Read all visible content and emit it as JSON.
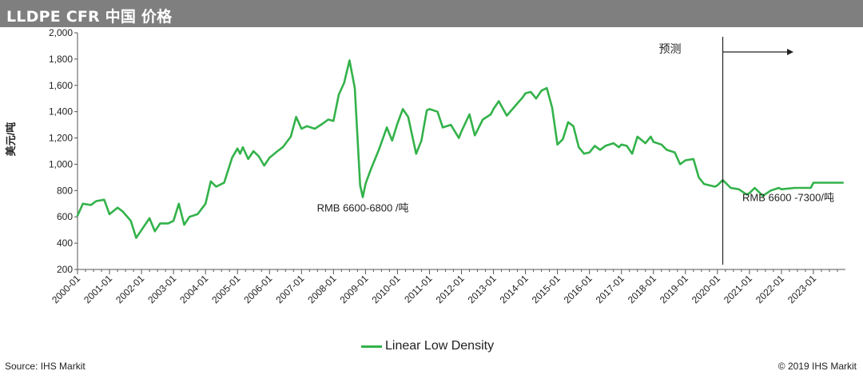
{
  "header": {
    "title": "LLDPE CFR 中国 价格"
  },
  "footer": {
    "source": "Source: IHS Markit",
    "copyright": "© 2019 IHS Markit"
  },
  "chart_data": {
    "type": "line",
    "title": "LLDPE CFR 中国 价格",
    "ylabel": "美元/吨",
    "xlabel": "",
    "ylim": [
      200,
      2000
    ],
    "yticks": [
      "200",
      "400",
      "600",
      "800",
      "1,000",
      "1,200",
      "1,400",
      "1,600",
      "1,800",
      "2,000"
    ],
    "ytick_values": [
      200,
      400,
      600,
      800,
      1000,
      1200,
      1400,
      1600,
      1800,
      2000
    ],
    "xticks": [
      "2000-01",
      "2001-01",
      "2002-01",
      "2003-01",
      "2004-01",
      "2005-01",
      "2006-01",
      "2007-01",
      "2008-01",
      "2009-01",
      "2010-01",
      "2011-01",
      "2012-01",
      "2013-01",
      "2014-01",
      "2015-01",
      "2016-01",
      "2017-01",
      "2018-01",
      "2019-01",
      "2020-01",
      "2021-01",
      "2022-01",
      "2023-01"
    ],
    "xlim": [
      "2000-01",
      "2023-12"
    ],
    "grid": false,
    "legend_position": "bottom-center",
    "series": [
      {
        "name": "Linear Low Density",
        "color": "#33b24a",
        "points": [
          [
            "2000-01",
            610
          ],
          [
            "2000-03",
            700
          ],
          [
            "2000-06",
            690
          ],
          [
            "2000-08",
            720
          ],
          [
            "2000-11",
            730
          ],
          [
            "2001-01",
            620
          ],
          [
            "2001-04",
            670
          ],
          [
            "2001-06",
            640
          ],
          [
            "2001-09",
            570
          ],
          [
            "2001-11",
            440
          ],
          [
            "2002-01",
            500
          ],
          [
            "2002-04",
            590
          ],
          [
            "2002-06",
            490
          ],
          [
            "2002-08",
            550
          ],
          [
            "2002-11",
            550
          ],
          [
            "2003-01",
            570
          ],
          [
            "2003-03",
            700
          ],
          [
            "2003-05",
            540
          ],
          [
            "2003-07",
            600
          ],
          [
            "2003-10",
            620
          ],
          [
            "2004-01",
            700
          ],
          [
            "2004-03",
            870
          ],
          [
            "2004-05",
            830
          ],
          [
            "2004-08",
            860
          ],
          [
            "2004-11",
            1050
          ],
          [
            "2005-01",
            1120
          ],
          [
            "2005-02",
            1080
          ],
          [
            "2005-03",
            1130
          ],
          [
            "2005-05",
            1040
          ],
          [
            "2005-07",
            1100
          ],
          [
            "2005-09",
            1060
          ],
          [
            "2005-11",
            990
          ],
          [
            "2006-01",
            1050
          ],
          [
            "2006-04",
            1100
          ],
          [
            "2006-06",
            1130
          ],
          [
            "2006-09",
            1210
          ],
          [
            "2006-11",
            1360
          ],
          [
            "2007-01",
            1270
          ],
          [
            "2007-03",
            1290
          ],
          [
            "2007-06",
            1270
          ],
          [
            "2007-09",
            1310
          ],
          [
            "2007-11",
            1340
          ],
          [
            "2008-01",
            1330
          ],
          [
            "2008-03",
            1530
          ],
          [
            "2008-05",
            1620
          ],
          [
            "2008-07",
            1790
          ],
          [
            "2008-09",
            1580
          ],
          [
            "2008-11",
            840
          ],
          [
            "2008-12",
            750
          ],
          [
            "2009-01",
            850
          ],
          [
            "2009-03",
            960
          ],
          [
            "2009-06",
            1110
          ],
          [
            "2009-09",
            1280
          ],
          [
            "2009-11",
            1180
          ],
          [
            "2010-01",
            1310
          ],
          [
            "2010-03",
            1420
          ],
          [
            "2010-05",
            1360
          ],
          [
            "2010-08",
            1080
          ],
          [
            "2010-10",
            1180
          ],
          [
            "2010-12",
            1410
          ],
          [
            "2011-01",
            1420
          ],
          [
            "2011-04",
            1400
          ],
          [
            "2011-06",
            1280
          ],
          [
            "2011-09",
            1300
          ],
          [
            "2011-12",
            1200
          ],
          [
            "2012-01",
            1250
          ],
          [
            "2012-04",
            1380
          ],
          [
            "2012-06",
            1220
          ],
          [
            "2012-09",
            1340
          ],
          [
            "2012-12",
            1380
          ],
          [
            "2013-01",
            1420
          ],
          [
            "2013-03",
            1480
          ],
          [
            "2013-06",
            1370
          ],
          [
            "2013-09",
            1440
          ],
          [
            "2013-12",
            1510
          ],
          [
            "2014-01",
            1540
          ],
          [
            "2014-03",
            1550
          ],
          [
            "2014-05",
            1500
          ],
          [
            "2014-07",
            1560
          ],
          [
            "2014-09",
            1580
          ],
          [
            "2014-11",
            1430
          ],
          [
            "2015-01",
            1150
          ],
          [
            "2015-03",
            1190
          ],
          [
            "2015-05",
            1320
          ],
          [
            "2015-07",
            1290
          ],
          [
            "2015-09",
            1130
          ],
          [
            "2015-11",
            1080
          ],
          [
            "2016-01",
            1090
          ],
          [
            "2016-03",
            1140
          ],
          [
            "2016-05",
            1110
          ],
          [
            "2016-07",
            1140
          ],
          [
            "2016-10",
            1160
          ],
          [
            "2016-12",
            1130
          ],
          [
            "2017-01",
            1150
          ],
          [
            "2017-03",
            1140
          ],
          [
            "2017-05",
            1080
          ],
          [
            "2017-07",
            1210
          ],
          [
            "2017-10",
            1160
          ],
          [
            "2017-12",
            1210
          ],
          [
            "2018-01",
            1170
          ],
          [
            "2018-04",
            1150
          ],
          [
            "2018-06",
            1110
          ],
          [
            "2018-09",
            1090
          ],
          [
            "2018-11",
            1000
          ],
          [
            "2019-01",
            1030
          ],
          [
            "2019-04",
            1040
          ],
          [
            "2019-06",
            900
          ],
          [
            "2019-08",
            850
          ],
          [
            "2019-10",
            840
          ],
          [
            "2019-12",
            830
          ],
          [
            "2020-01",
            840
          ],
          [
            "2020-03",
            880
          ],
          [
            "2020-06",
            820
          ],
          [
            "2020-09",
            810
          ],
          [
            "2020-12",
            770
          ],
          [
            "2021-01",
            780
          ],
          [
            "2021-03",
            820
          ],
          [
            "2021-06",
            760
          ],
          [
            "2021-09",
            800
          ],
          [
            "2021-12",
            820
          ],
          [
            "2022-01",
            810
          ],
          [
            "2022-06",
            820
          ],
          [
            "2022-12",
            820
          ],
          [
            "2023-01",
            860
          ],
          [
            "2023-06",
            860
          ],
          [
            "2023-12",
            860
          ]
        ]
      }
    ],
    "forecast": {
      "label": "预测",
      "start": "2020-03"
    },
    "annotations": [
      {
        "text": "RMB 6600-6800 /吨",
        "x": "2008-12",
        "y": 750
      },
      {
        "text": "RMB 6600 -7300/吨",
        "x": "2020-03",
        "y": 810
      }
    ]
  }
}
